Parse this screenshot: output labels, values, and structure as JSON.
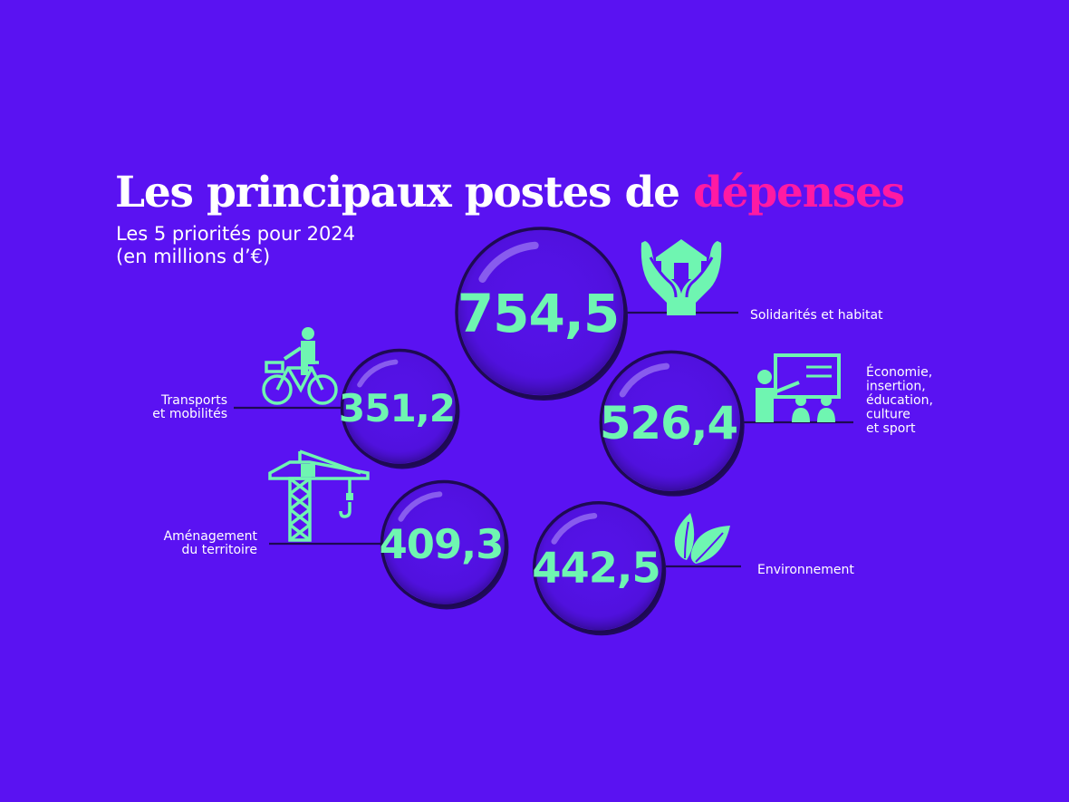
{
  "header": {
    "title_main": "Les principaux postes de ",
    "title_accent": "dépenses",
    "subtitle_line1": "Les 5 priorités pour 2024",
    "subtitle_line2": "(en millions d’€)"
  },
  "colors": {
    "background": "#5a12f2",
    "bubble_fill": "#5412e6",
    "bubble_rim": "#1e0a52",
    "value_text": "#6ff5b1",
    "icon": "#6ff5b1",
    "accent": "#ff1aa3",
    "label_text": "#ffffff"
  },
  "chart_data": {
    "type": "bubble",
    "unit": "millions d’€",
    "items": [
      {
        "label": "Solidarités et habitat",
        "value": 754.5,
        "value_label": "754,5",
        "icon": "house-in-hands-icon"
      },
      {
        "label": "Économie, insertion, éducation, culture et sport",
        "label_lines": [
          "Économie,",
          "insertion,",
          "éducation,",
          "culture",
          "et sport"
        ],
        "value": 526.4,
        "value_label": "526,4",
        "icon": "teacher-board-icon"
      },
      {
        "label": "Environnement",
        "value": 442.5,
        "value_label": "442,5",
        "icon": "leaves-icon"
      },
      {
        "label": "Aménagement du territoire",
        "label_lines": [
          "Aménagement",
          "du territoire"
        ],
        "value": 409.3,
        "value_label": "409,3",
        "icon": "crane-icon"
      },
      {
        "label": "Transports et mobilités",
        "label_lines": [
          "Transports",
          "et mobilités"
        ],
        "value": 351.2,
        "value_label": "351,2",
        "icon": "cyclist-icon"
      }
    ]
  }
}
